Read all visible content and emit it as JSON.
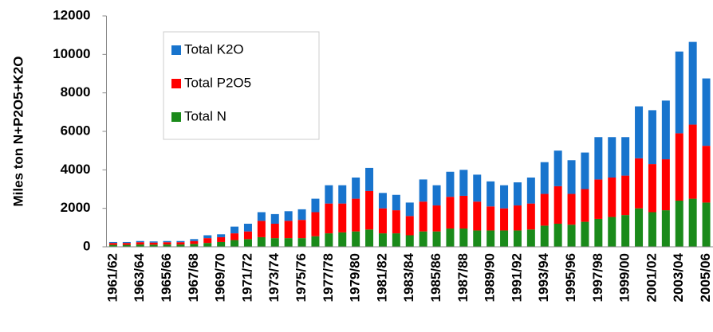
{
  "chart_data": {
    "type": "stacked_bar",
    "y_label": "Miles ton N+P2O5+K2O",
    "categories": [
      "1961/62",
      null,
      "1963/64",
      null,
      "1965/66",
      null,
      "1967/68",
      null,
      "1969/70",
      null,
      "1971/72",
      null,
      "1973/74",
      null,
      "1975/76",
      null,
      "1977/78",
      null,
      "1979/80",
      null,
      "1981/82",
      null,
      "1983/84",
      null,
      "1985/86",
      null,
      "1987/88",
      null,
      "1989/90",
      null,
      "1991/92",
      null,
      "1993/94",
      null,
      "1995/96",
      null,
      "1997/98",
      null,
      "1999/00",
      null,
      "2001/02",
      null,
      "2003/04",
      null,
      "2005/06"
    ],
    "series": [
      {
        "name": "Total N",
        "color": "#1a8a1a",
        "values": [
          100,
          100,
          120,
          110,
          120,
          120,
          150,
          200,
          250,
          350,
          400,
          500,
          450,
          450,
          450,
          550,
          700,
          750,
          800,
          900,
          700,
          700,
          600,
          800,
          800,
          950,
          950,
          850,
          850,
          850,
          850,
          900,
          1100,
          1200,
          1150,
          1300,
          1450,
          1550,
          1650,
          2000,
          1800,
          1900,
          2400,
          2500,
          2300
        ]
      },
      {
        "name": "Total P2O5",
        "color": "#ff0000",
        "values": [
          100,
          100,
          120,
          110,
          120,
          120,
          150,
          250,
          250,
          350,
          400,
          850,
          750,
          900,
          950,
          1250,
          1550,
          1500,
          1700,
          2000,
          1300,
          1200,
          1000,
          1550,
          1350,
          1650,
          1700,
          1500,
          1250,
          1150,
          1300,
          1350,
          1650,
          1950,
          1600,
          1700,
          2050,
          2050,
          2050,
          2600,
          2500,
          2650,
          3500,
          3850,
          2950
        ]
      },
      {
        "name": "Total K2O",
        "color": "#1874cd",
        "values": [
          50,
          50,
          60,
          60,
          60,
          60,
          100,
          150,
          150,
          350,
          400,
          450,
          500,
          500,
          550,
          700,
          950,
          950,
          1100,
          1200,
          800,
          800,
          700,
          1150,
          1050,
          1300,
          1350,
          1400,
          1300,
          1200,
          1200,
          1350,
          1650,
          1850,
          1750,
          1900,
          2200,
          2100,
          2000,
          2700,
          2800,
          3050,
          4250,
          4300,
          3500
        ]
      }
    ],
    "ylim": [
      0,
      12000
    ],
    "yticks": [
      0,
      2000,
      4000,
      6000,
      8000,
      10000,
      12000
    ]
  }
}
